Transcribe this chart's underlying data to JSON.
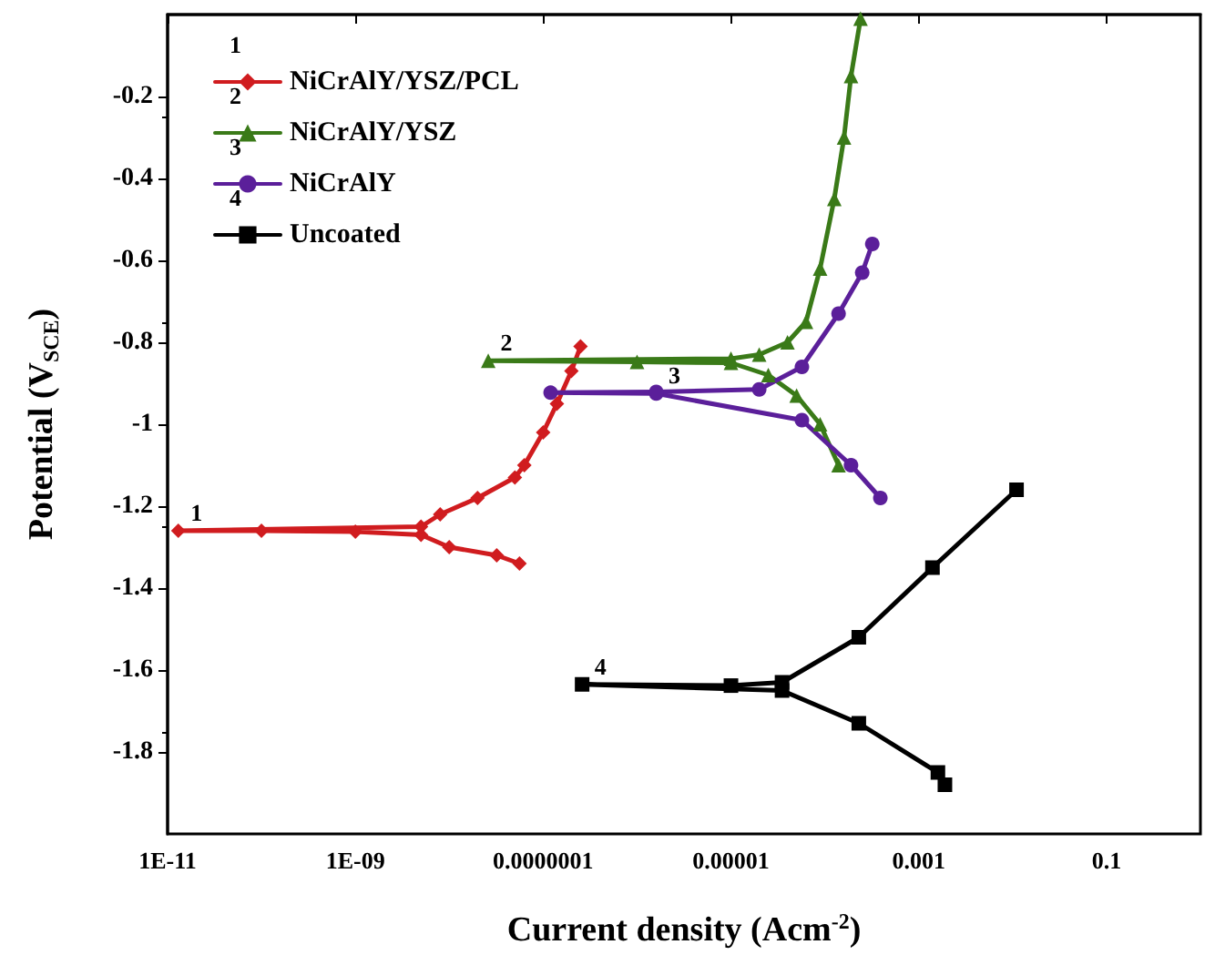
{
  "chart_data": {
    "type": "line",
    "xlabel": "Current density (Acm$^{-2}$)",
    "ylabel": "Potential (V$_{SCE}$)",
    "log": "x",
    "grid": false,
    "legend": "top left",
    "line_style": "solid",
    "xlim": [
      1e-11,
      1
    ],
    "xticks": [
      {
        "value": 1e-11,
        "label": "1E-11"
      },
      {
        "value": 1e-09,
        "label": "1E-09"
      },
      {
        "value": 1e-07,
        "label": "0.0000001"
      },
      {
        "value": 1e-05,
        "label": "0.00001"
      },
      {
        "value": 0.001,
        "label": "0.001"
      },
      {
        "value": 0.1,
        "label": "0.1"
      }
    ],
    "ylim": [
      -2,
      0
    ],
    "yticks": [
      -1.8,
      -1.6,
      -1.4,
      -1.2,
      -1,
      -0.8,
      -0.6,
      -0.4,
      -0.2
    ],
    "series": [
      {
        "name": "NiCrAlY/YSZ/PCL",
        "color": "#d01c1f",
        "marker": "diamond",
        "x": [
          5.6e-08,
          3.2e-08,
          1e-08,
          5e-09,
          1e-09,
          1e-10,
          1.3e-11,
          5e-09,
          8e-09,
          2e-08,
          5e-08,
          6.3e-08,
          1e-07,
          1.4e-07,
          2e-07,
          2.5e-07
        ],
        "values": [
          -1.34,
          -1.32,
          -1.3,
          -1.27,
          -1.262,
          -1.26,
          -1.26,
          -1.25,
          -1.22,
          -1.18,
          -1.13,
          -1.1,
          -1.02,
          -0.95,
          -0.87,
          -0.81
        ]
      },
      {
        "name": "NiCrAlY/YSZ",
        "color": "#3a7a18",
        "marker": "triangle",
        "x": [
          0.00014,
          8.9e-05,
          5e-05,
          2.5e-05,
          1e-05,
          1e-06,
          2.6e-08,
          1e-05,
          2e-05,
          4e-05,
          6.3e-05,
          8.9e-05,
          0.000126,
          0.00016,
          0.00019,
          0.00024
        ],
        "values": [
          -1.1,
          -1.0,
          -0.93,
          -0.88,
          -0.85,
          -0.848,
          -0.845,
          -0.84,
          -0.83,
          -0.8,
          -0.75,
          -0.62,
          -0.45,
          -0.3,
          -0.15,
          -0.01
        ]
      },
      {
        "name": "NiCrAlY",
        "color": "#5b1f9a",
        "marker": "circle",
        "x": [
          0.00039,
          0.00019,
          5.7e-05,
          1.6e-06,
          1.2e-07,
          1.6e-06,
          2e-05,
          5.7e-05,
          0.00014,
          0.00025,
          0.00032
        ],
        "values": [
          -1.18,
          -1.1,
          -0.99,
          -0.925,
          -0.923,
          -0.921,
          -0.915,
          -0.86,
          -0.73,
          -0.63,
          -0.56
        ]
      },
      {
        "name": "Uncoated",
        "color": "#000000",
        "marker": "square",
        "x": [
          0.0019,
          0.0016,
          0.00023,
          3.5e-05,
          2.6e-07,
          1e-05,
          3.5e-05,
          0.00023,
          0.0014,
          0.011
        ],
        "values": [
          -1.88,
          -1.85,
          -1.73,
          -1.65,
          -1.635,
          -1.638,
          -1.63,
          -1.52,
          -1.35,
          -1.16
        ]
      }
    ],
    "annotations": [
      "1",
      "2",
      "3",
      "4",
      {
        "text": "1",
        "x": 1.3e-11,
        "y": -1.26
      },
      {
        "text": "2",
        "x": 2.6e-08,
        "y": -0.845
      },
      {
        "text": "3",
        "x": 1.6e-06,
        "y": -0.925
      },
      {
        "text": "4",
        "x": 2.6e-07,
        "y": -1.635
      }
    ]
  }
}
